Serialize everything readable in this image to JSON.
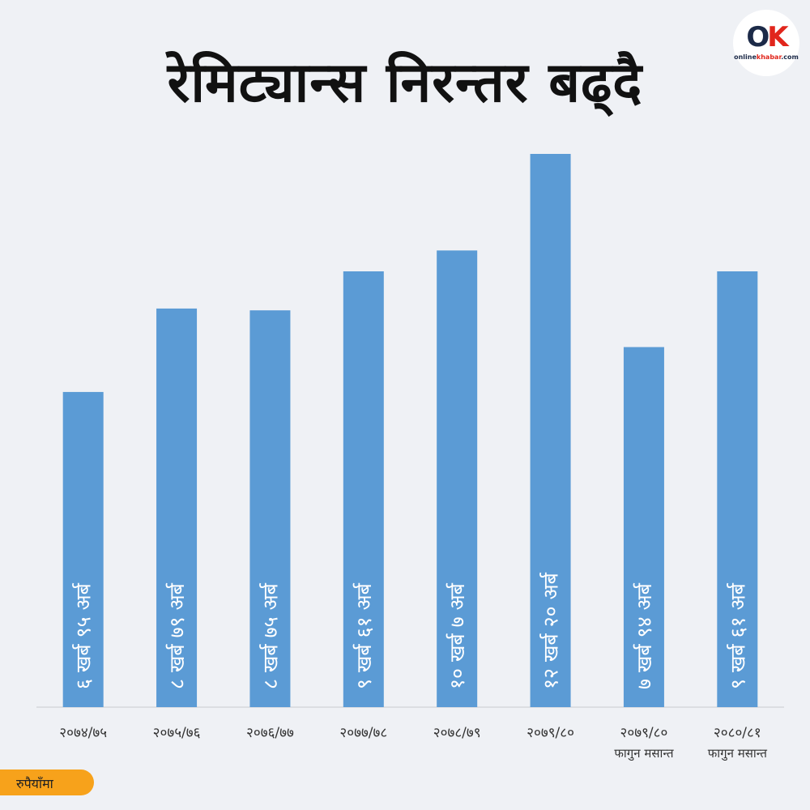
{
  "logo": {
    "mark_o": "O",
    "mark_k": "K",
    "text_main": "online",
    "text_accent": "khabar",
    "text_suffix": ".com"
  },
  "unit_label": "रुपैयाँमा",
  "colors": {
    "bar": "#5b9bd5",
    "background": "#eff1f5",
    "badge": "#f7a21b",
    "axis": "#c8cbd0"
  },
  "chart_data": {
    "type": "bar",
    "title": "रेमिट्यान्स निरन्तर बढ्दै",
    "categories": [
      "२०७४/७५",
      "२०७५/७६",
      "२०७६/७७",
      "२०७७/७८",
      "२०७८/७९",
      "२०७९/८०",
      "२०७९/८०",
      "२०८०/८१"
    ],
    "category_notes": [
      "",
      "",
      "",
      "",
      "",
      "",
      "फागुन मसान्त",
      "फागुन मसान्त"
    ],
    "values": [
      695,
      879,
      875,
      961,
      1007,
      1220,
      794,
      961
    ],
    "value_unit": "अर्ब रुपैयाँ",
    "data_labels": [
      "६ खर्ब ९५ अर्ब",
      "८ खर्ब ७९ अर्ब",
      "८ खर्ब ७५ अर्ब",
      "९ खर्ब ६१ अर्ब",
      "१० खर्ब ७ अर्ब",
      "१२ खर्ब २० अर्ब",
      "७ खर्ब ९४ अर्ब",
      "९ खर्ब ६१ अर्ब"
    ],
    "ylim": [
      0,
      1220
    ],
    "grid": false
  }
}
